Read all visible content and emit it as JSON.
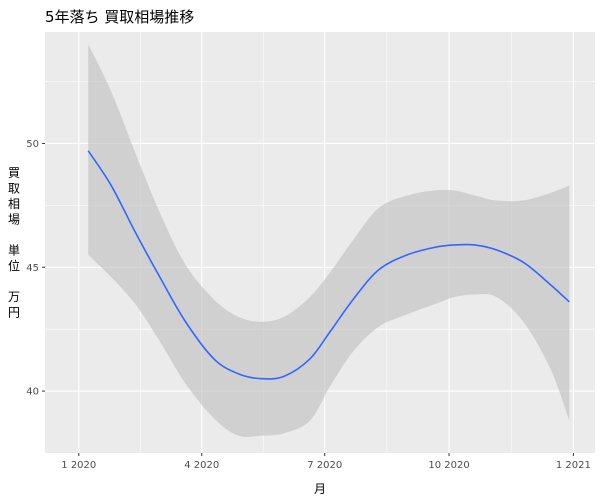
{
  "chart_data": {
    "type": "line",
    "title": "5年落ち 買取相場推移",
    "xlabel": "月",
    "ylabel": "買取相場 単位 万円",
    "ylabel_lines": [
      "買",
      "取",
      "相",
      "場",
      "",
      "単",
      "位",
      "",
      "万",
      "円"
    ],
    "x_ticks": [
      {
        "value": "2020-01-01",
        "label": "1 2020"
      },
      {
        "value": "2020-04-01",
        "label": "4 2020"
      },
      {
        "value": "2020-07-01",
        "label": "7 2020"
      },
      {
        "value": "2020-10-01",
        "label": "10 2020"
      },
      {
        "value": "2021-01-01",
        "label": "1 2021"
      }
    ],
    "y_ticks": [
      40,
      45,
      50
    ],
    "xlim": [
      "2019-12-07",
      "2021-01-17"
    ],
    "ylim": [
      37.5,
      54.5
    ],
    "series": [
      {
        "x": [
          "2020-01-08",
          "2020-01-25",
          "2020-02-12",
          "2020-03-01",
          "2020-03-20",
          "2020-04-10",
          "2020-04-28",
          "2020-05-15",
          "2020-06-01",
          "2020-06-20",
          "2020-07-05",
          "2020-07-22",
          "2020-08-10",
          "2020-08-31",
          "2020-09-20",
          "2020-10-05",
          "2020-10-20",
          "2020-11-05",
          "2020-11-25",
          "2020-12-15",
          "2020-12-29"
        ],
        "y": [
          49.7,
          48.3,
          46.4,
          44.6,
          42.8,
          41.3,
          40.7,
          40.5,
          40.6,
          41.3,
          42.4,
          43.7,
          44.9,
          45.5,
          45.8,
          45.9,
          45.9,
          45.7,
          45.2,
          44.3,
          43.6
        ],
        "lower": [
          45.5,
          44.6,
          43.5,
          42.0,
          40.3,
          38.9,
          38.2,
          38.2,
          38.3,
          38.8,
          40.2,
          41.6,
          42.6,
          43.1,
          43.5,
          43.8,
          43.9,
          43.8,
          42.8,
          40.9,
          38.8
        ],
        "upper": [
          54.0,
          52.1,
          49.6,
          47.2,
          45.1,
          43.7,
          43.0,
          42.8,
          43.0,
          43.8,
          44.8,
          46.1,
          47.4,
          47.9,
          48.1,
          48.1,
          47.9,
          47.7,
          47.7,
          48.0,
          48.3
        ]
      }
    ],
    "colors": {
      "line": "#3366FF",
      "ribbon": "#BEBEBE",
      "panel": "#EBEBEB",
      "grid": "#FFFFFF"
    },
    "grid": true,
    "legend": "none"
  }
}
